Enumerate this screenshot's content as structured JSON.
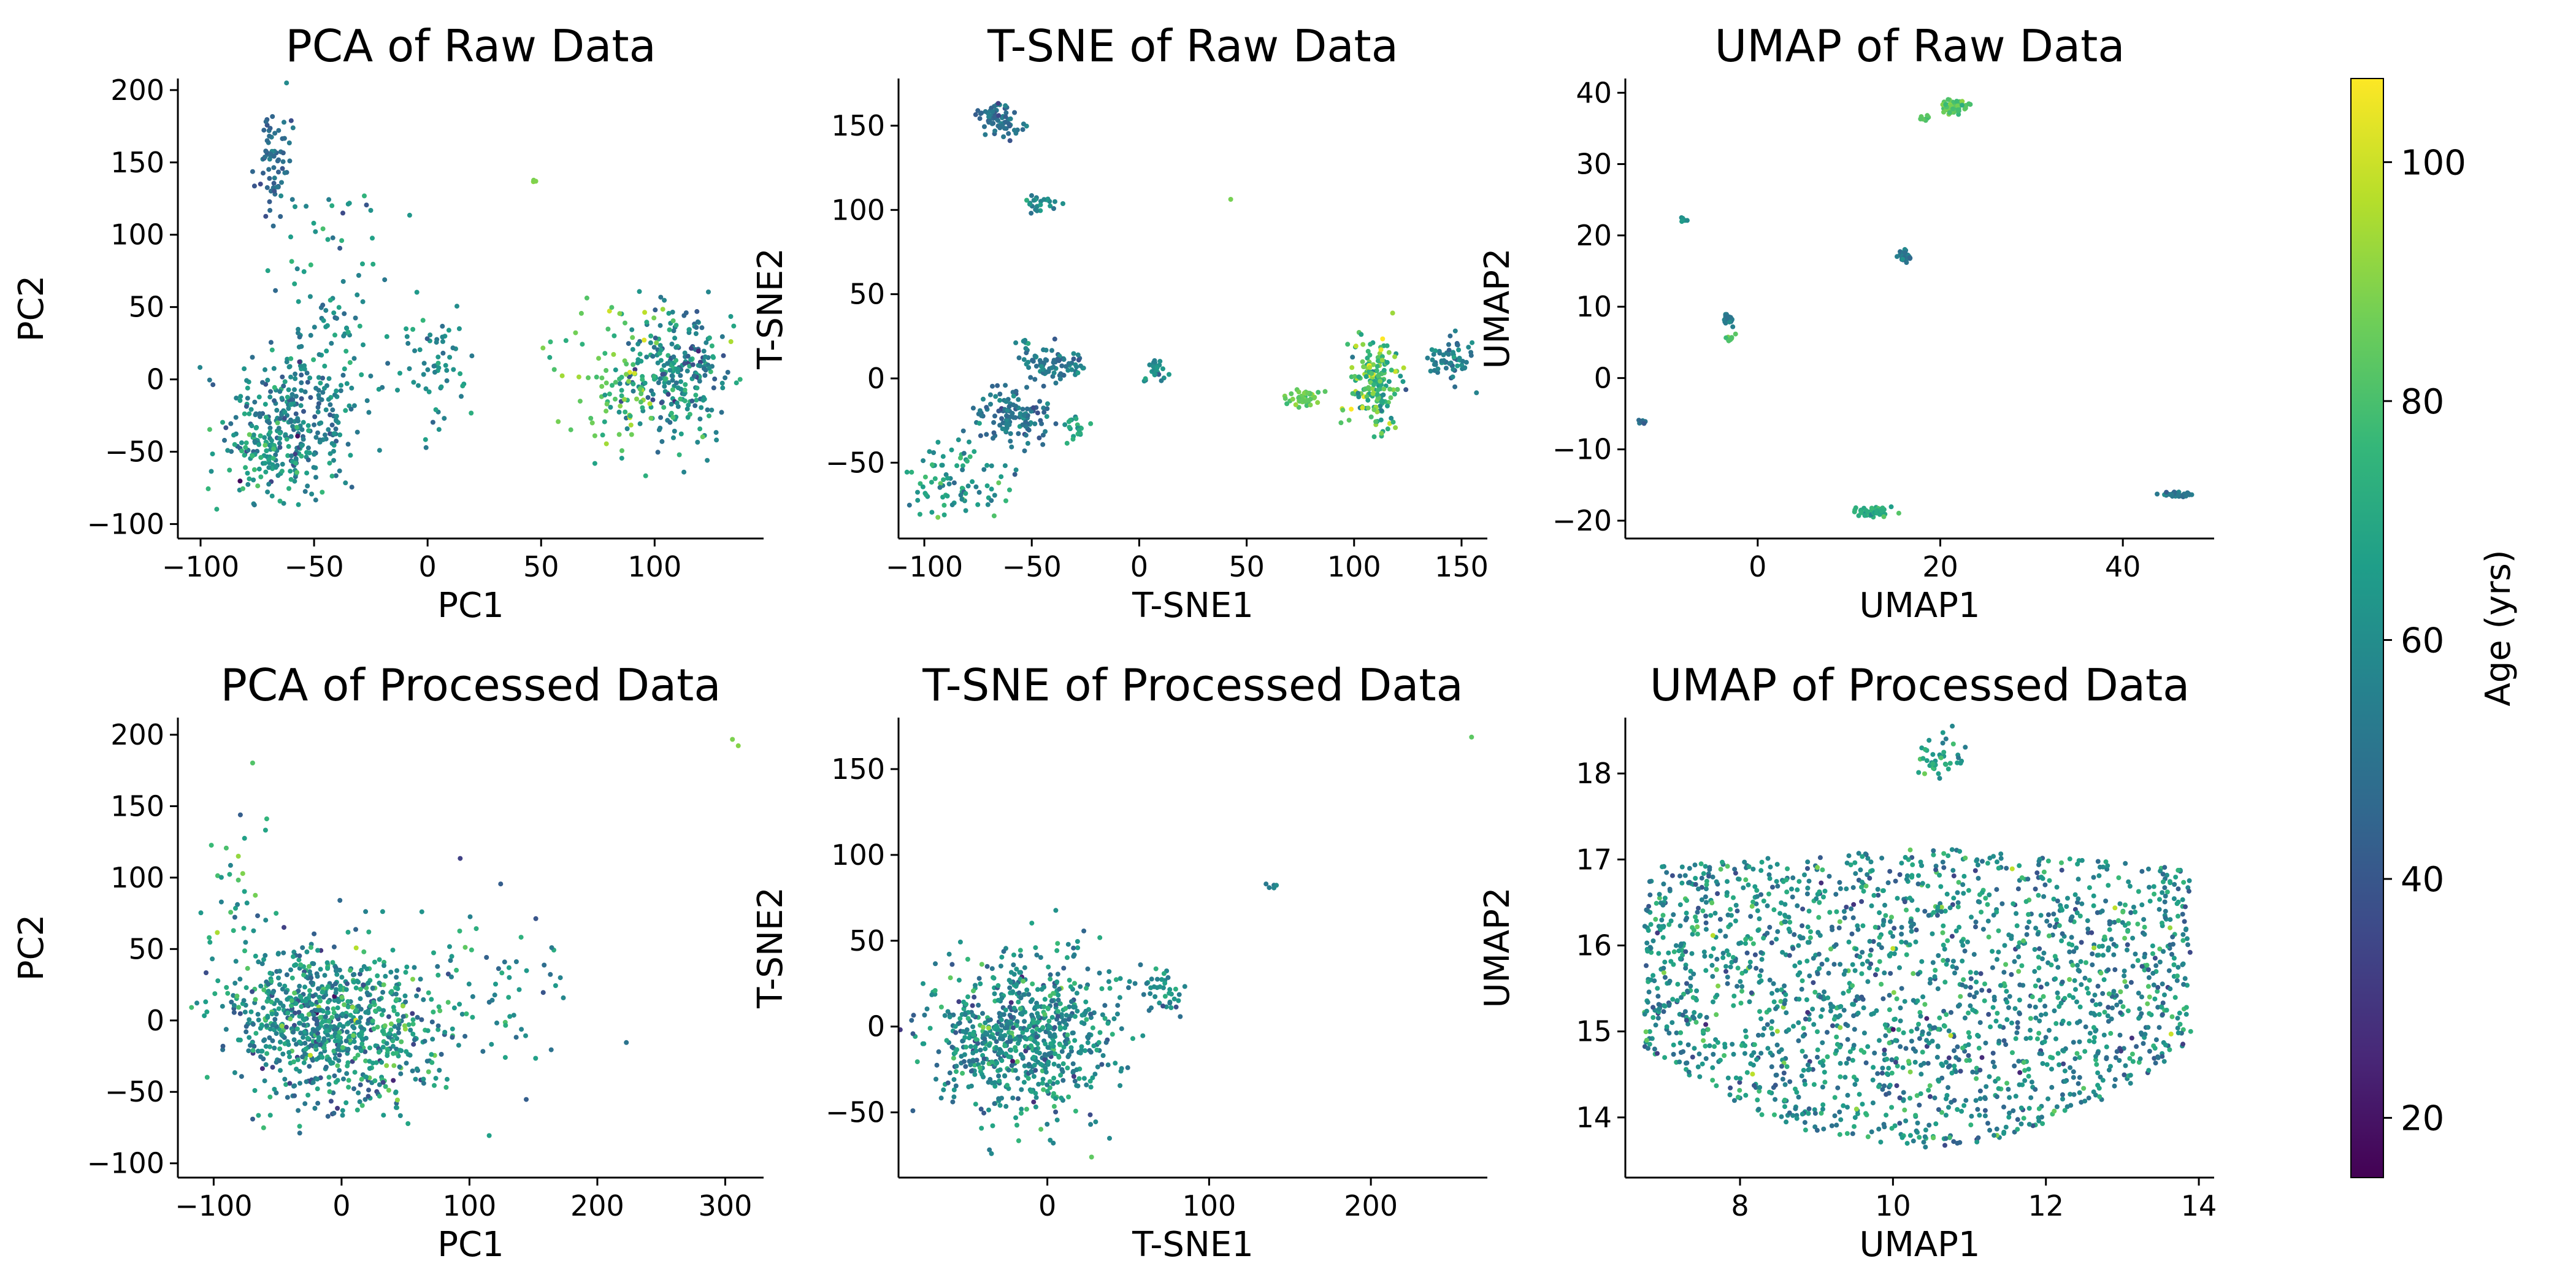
{
  "chart_data": [
    {
      "type": "scatter",
      "id": "pca-raw",
      "title": "PCA of Raw Data",
      "xlabel": "PC1",
      "ylabel": "PC2",
      "xlim": [
        -110,
        148
      ],
      "ylim": [
        -110,
        208
      ],
      "xticks": [
        -100,
        -50,
        0,
        50,
        100
      ],
      "yticks": [
        -100,
        -50,
        0,
        50,
        100,
        150,
        200
      ],
      "xtick_labels": [
        "−100",
        "−50",
        "0",
        "50",
        "100"
      ],
      "ytick_labels": [
        "−100",
        "−50",
        "0",
        "50",
        "100",
        "150",
        "200"
      ],
      "clusters": [
        {
          "cx": -60,
          "cy": -30,
          "sx": 14,
          "sy": 26,
          "n": 280,
          "age": 55,
          "age_sd": 9
        },
        {
          "cx": -68,
          "cy": 150,
          "sx": 4,
          "sy": 16,
          "n": 70,
          "age": 48,
          "age_sd": 5
        },
        {
          "cx": -44,
          "cy": 40,
          "sx": 12,
          "sy": 55,
          "n": 110,
          "age": 60,
          "age_sd": 8
        },
        {
          "cx": -72,
          "cy": -55,
          "sx": 10,
          "sy": 18,
          "n": 70,
          "age": 68,
          "age_sd": 7
        },
        {
          "cx": 5,
          "cy": 5,
          "sx": 9,
          "sy": 25,
          "n": 60,
          "age": 60,
          "age_sd": 7
        },
        {
          "cx": 110,
          "cy": 5,
          "sx": 12,
          "sy": 25,
          "n": 260,
          "age": 60,
          "age_sd": 11
        },
        {
          "cx": 85,
          "cy": 0,
          "sx": 14,
          "sy": 25,
          "n": 90,
          "age": 82,
          "age_sd": 8
        },
        {
          "cx": 47,
          "cy": 136,
          "sx": 1,
          "sy": 2,
          "n": 3,
          "age": 88,
          "age_sd": 2
        }
      ]
    },
    {
      "type": "scatter",
      "id": "tsne-raw",
      "title": "T-SNE of Raw Data",
      "xlabel": "T-SNE1",
      "ylabel": "T-SNE2",
      "xlim": [
        -112,
        162
      ],
      "ylim": [
        -95,
        178
      ],
      "xticks": [
        -100,
        -50,
        0,
        50,
        100,
        150
      ],
      "yticks": [
        -50,
        0,
        50,
        100,
        150
      ],
      "xtick_labels": [
        "−100",
        "−50",
        "0",
        "50",
        "100",
        "150"
      ],
      "ytick_labels": [
        "−50",
        "0",
        "50",
        "100",
        "150"
      ],
      "clusters": [
        {
          "cx": -68,
          "cy": 157,
          "sx": 4,
          "sy": 3,
          "n": 40,
          "age": 50,
          "age_sd": 6
        },
        {
          "cx": -63,
          "cy": 150,
          "sx": 4,
          "sy": 3,
          "n": 30,
          "age": 50,
          "age_sd": 6
        },
        {
          "cx": -47,
          "cy": 104,
          "sx": 4,
          "sy": 3,
          "n": 25,
          "age": 58,
          "age_sd": 6
        },
        {
          "cx": -58,
          "cy": -22,
          "sx": 9,
          "sy": 7,
          "n": 120,
          "age": 50,
          "age_sd": 7
        },
        {
          "cx": -40,
          "cy": 9,
          "sx": 8,
          "sy": 5,
          "n": 80,
          "age": 52,
          "age_sd": 6
        },
        {
          "cx": -55,
          "cy": 20,
          "sx": 2,
          "sy": 2,
          "n": 8,
          "age": 60,
          "age_sd": 6
        },
        {
          "cx": -30,
          "cy": -28,
          "sx": 3,
          "sy": 4,
          "n": 20,
          "age": 70,
          "age_sd": 5
        },
        {
          "cx": -85,
          "cy": -58,
          "sx": 14,
          "sy": 12,
          "n": 90,
          "age": 65,
          "age_sd": 8
        },
        {
          "cx": 8,
          "cy": 5,
          "sx": 3,
          "sy": 4,
          "n": 30,
          "age": 58,
          "age_sd": 6
        },
        {
          "cx": 77,
          "cy": -12,
          "sx": 4,
          "sy": 3,
          "n": 40,
          "age": 85,
          "age_sd": 5
        },
        {
          "cx": 110,
          "cy": -2,
          "sx": 6,
          "sy": 14,
          "n": 180,
          "age": 78,
          "age_sd": 12
        },
        {
          "cx": 145,
          "cy": 10,
          "sx": 5,
          "sy": 6,
          "n": 60,
          "age": 55,
          "age_sd": 6
        },
        {
          "cx": 43,
          "cy": 107,
          "sx": 0.5,
          "sy": 0.5,
          "n": 1,
          "age": 88,
          "age_sd": 1
        }
      ]
    },
    {
      "type": "scatter",
      "id": "umap-raw",
      "title": "UMAP of Raw Data",
      "xlabel": "UMAP1",
      "ylabel": "UMAP2",
      "xlim": [
        -14.5,
        50
      ],
      "ylim": [
        -22.5,
        42
      ],
      "xticks": [
        0,
        20,
        40
      ],
      "yticks": [
        -20,
        -10,
        0,
        10,
        20,
        30,
        40
      ],
      "xtick_labels": [
        "0",
        "20",
        "40"
      ],
      "ytick_labels": [
        "−20",
        "−10",
        "0",
        "10",
        "20",
        "30",
        "40"
      ],
      "clusters": [
        {
          "cx": 21.5,
          "cy": 38,
          "sx": 0.8,
          "sy": 0.5,
          "n": 70,
          "age": 82,
          "age_sd": 4
        },
        {
          "cx": 18.5,
          "cy": 36.5,
          "sx": 0.3,
          "sy": 0.2,
          "n": 8,
          "age": 82,
          "age_sd": 4
        },
        {
          "cx": 16,
          "cy": 17,
          "sx": 0.4,
          "sy": 0.4,
          "n": 50,
          "age": 52,
          "age_sd": 5
        },
        {
          "cx": -8.2,
          "cy": 22,
          "sx": 0.2,
          "sy": 0.2,
          "n": 6,
          "age": 62,
          "age_sd": 4
        },
        {
          "cx": -3.2,
          "cy": 8.5,
          "sx": 0.3,
          "sy": 0.6,
          "n": 20,
          "age": 55,
          "age_sd": 5
        },
        {
          "cx": -3.0,
          "cy": 5.5,
          "sx": 0.3,
          "sy": 0.3,
          "n": 8,
          "age": 80,
          "age_sd": 4
        },
        {
          "cx": -12.6,
          "cy": -6,
          "sx": 0.2,
          "sy": 0.3,
          "n": 8,
          "age": 48,
          "age_sd": 4
        },
        {
          "cx": 12.8,
          "cy": -18.9,
          "sx": 1.0,
          "sy": 0.3,
          "n": 60,
          "age": 72,
          "age_sd": 5
        },
        {
          "cx": 46,
          "cy": -16.3,
          "sx": 0.8,
          "sy": 0.2,
          "n": 30,
          "age": 52,
          "age_sd": 4
        }
      ]
    },
    {
      "type": "scatter",
      "id": "pca-processed",
      "title": "PCA of Processed Data",
      "xlabel": "PC1",
      "ylabel": "PC2",
      "xlim": [
        -128,
        330
      ],
      "ylim": [
        -110,
        212
      ],
      "xticks": [
        -100,
        0,
        100,
        200,
        300
      ],
      "yticks": [
        -100,
        -50,
        0,
        50,
        100,
        150,
        200
      ],
      "xtick_labels": [
        "−100",
        "0",
        "100",
        "200",
        "300"
      ],
      "ytick_labels": [
        "−100",
        "−50",
        "0",
        "50",
        "100",
        "150",
        "200"
      ],
      "clusters": [
        {
          "cx": -20,
          "cy": 0,
          "sx": 35,
          "sy": 25,
          "n": 650,
          "age": 58,
          "age_sd": 12
        },
        {
          "cx": 30,
          "cy": -10,
          "sx": 30,
          "sy": 25,
          "n": 200,
          "age": 66,
          "age_sd": 12
        },
        {
          "cx": 100,
          "cy": 20,
          "sx": 40,
          "sy": 40,
          "n": 80,
          "age": 58,
          "age_sd": 10
        },
        {
          "cx": -80,
          "cy": 80,
          "sx": 15,
          "sy": 40,
          "n": 40,
          "age": 72,
          "age_sd": 10
        },
        {
          "cx": 298,
          "cy": 194,
          "sx": 8,
          "sy": 2,
          "n": 2,
          "age": 90,
          "age_sd": 3
        }
      ]
    },
    {
      "type": "scatter",
      "id": "tsne-processed",
      "title": "T-SNE of Processed Data",
      "xlabel": "T-SNE1",
      "ylabel": "T-SNE2",
      "xlim": [
        -92,
        272
      ],
      "ylim": [
        -88,
        180
      ],
      "xticks": [
        0,
        100,
        200
      ],
      "yticks": [
        -50,
        0,
        50,
        100,
        150
      ],
      "xtick_labels": [
        "0",
        "100",
        "200"
      ],
      "ytick_labels": [
        "−50",
        "0",
        "50",
        "100",
        "150"
      ],
      "clusters": [
        {
          "cx": -15,
          "cy": -5,
          "sx": 28,
          "sy": 22,
          "n": 750,
          "age": 60,
          "age_sd": 11
        },
        {
          "cx": 70,
          "cy": 20,
          "sx": 8,
          "sy": 8,
          "n": 40,
          "age": 60,
          "age_sd": 8
        },
        {
          "cx": 138,
          "cy": 81,
          "sx": 2,
          "sy": 1,
          "n": 5,
          "age": 55,
          "age_sd": 4
        },
        {
          "cx": 262,
          "cy": 168,
          "sx": 0.5,
          "sy": 0.5,
          "n": 1,
          "age": 85,
          "age_sd": 1
        }
      ]
    },
    {
      "type": "scatter",
      "id": "umap-processed",
      "title": "UMAP of Processed Data",
      "xlabel": "UMAP1",
      "ylabel": "UMAP2",
      "xlim": [
        6.5,
        14.2
      ],
      "ylim": [
        13.3,
        18.65
      ],
      "xticks": [
        8,
        10,
        12,
        14
      ],
      "yticks": [
        14,
        15,
        16,
        17,
        18
      ],
      "xtick_labels": [
        "8",
        "10",
        "12",
        "14"
      ],
      "ytick_labels": [
        "14",
        "15",
        "16",
        "17",
        "18"
      ],
      "umap_bowl": {
        "n": 1900,
        "age": 60,
        "age_sd": 12
      },
      "clusters": [
        {
          "cx": 10.6,
          "cy": 18.2,
          "sx": 0.2,
          "sy": 0.15,
          "n": 40,
          "age": 65,
          "age_sd": 8
        }
      ]
    }
  ],
  "colorbar": {
    "label": "Age (yrs)",
    "colormap": "viridis",
    "range": [
      15,
      107
    ],
    "ticks": [
      20,
      40,
      60,
      80,
      100
    ],
    "tick_labels": [
      "20",
      "40",
      "60",
      "80",
      "100"
    ]
  }
}
